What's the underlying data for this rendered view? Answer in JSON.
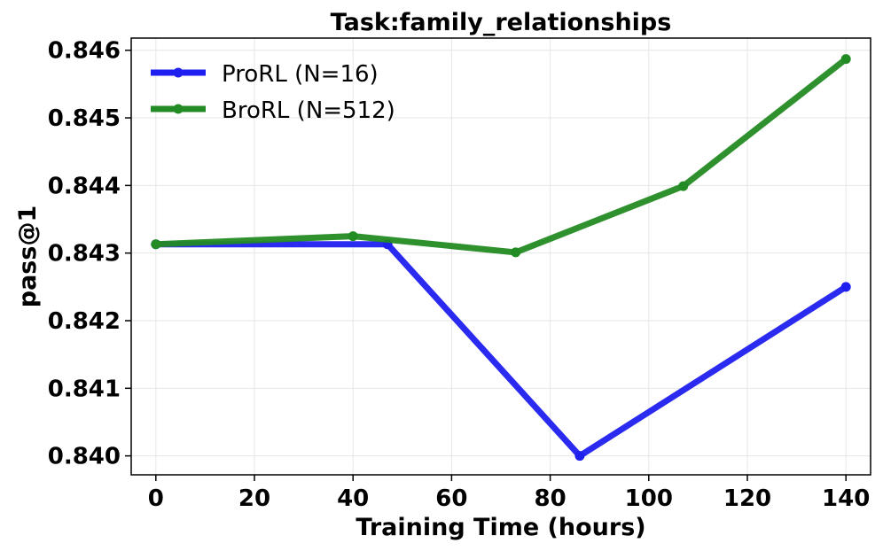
{
  "chart_data": {
    "type": "line",
    "title": "Task:family_relationships",
    "xlabel": "Training Time (hours)",
    "ylabel": "pass@1",
    "xlim": [
      -5,
      145
    ],
    "ylim": [
      0.83972,
      0.84618
    ],
    "xticks": [
      0,
      20,
      40,
      60,
      80,
      100,
      120,
      140
    ],
    "xtick_labels": [
      "0",
      "20",
      "40",
      "60",
      "80",
      "100",
      "120",
      "140"
    ],
    "yticks": [
      0.84,
      0.841,
      0.842,
      0.843,
      0.844,
      0.845,
      0.846
    ],
    "ytick_labels": [
      "0.840",
      "0.841",
      "0.842",
      "0.843",
      "0.844",
      "0.845",
      "0.846"
    ],
    "grid": true,
    "legend_position": "top-left",
    "series": [
      {
        "name": "ProRL (N=16)",
        "color": "#1f1ff0",
        "x": [
          0,
          47,
          86,
          140
        ],
        "y": [
          0.84313,
          0.84313,
          0.84,
          0.8425
        ]
      },
      {
        "name": "BroRL (N=512)",
        "color": "#238b23",
        "x": [
          0,
          40,
          73,
          107,
          140
        ],
        "y": [
          0.84313,
          0.84325,
          0.84301,
          0.84399,
          0.84587
        ]
      }
    ]
  }
}
